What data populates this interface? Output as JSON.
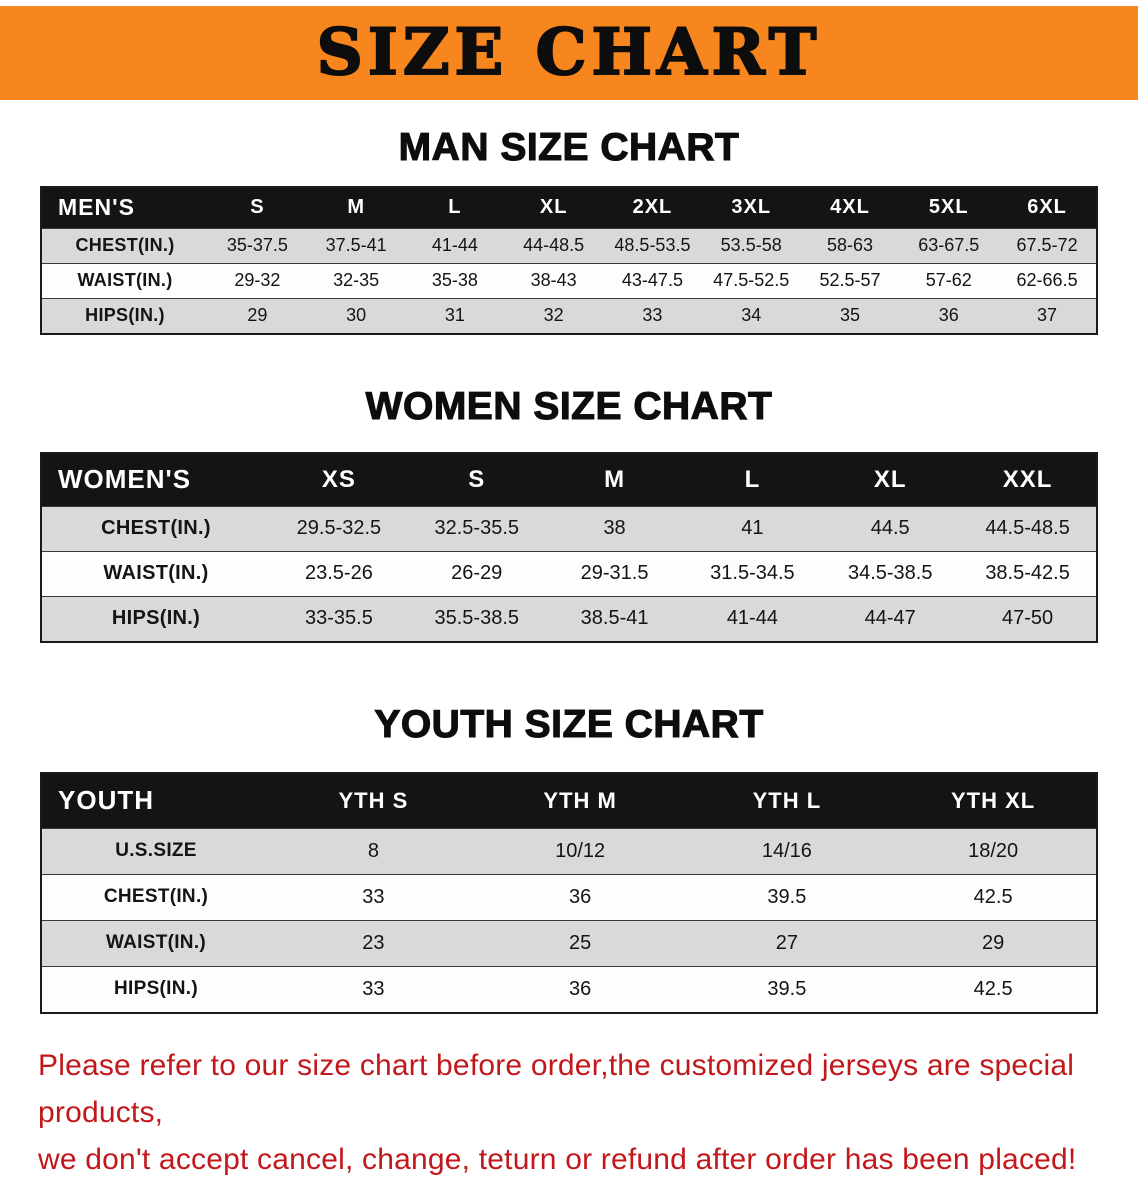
{
  "banner": {
    "title": "SIZE CHART",
    "bg_color": "#f6861d"
  },
  "sections": [
    {
      "heading": "MAN SIZE CHART",
      "table": {
        "header": [
          "MEN'S",
          "S",
          "M",
          "L",
          "XL",
          "2XL",
          "3XL",
          "4XL",
          "5XL",
          "6XL"
        ],
        "rows": [
          {
            "label": "CHEST(IN.)",
            "values": [
              "35-37.5",
              "37.5-41",
              "41-44",
              "44-48.5",
              "48.5-53.5",
              "53.5-58",
              "58-63",
              "63-67.5",
              "67.5-72"
            ]
          },
          {
            "label": "WAIST(IN.)",
            "values": [
              "29-32",
              "32-35",
              "35-38",
              "38-43",
              "43-47.5",
              "47.5-52.5",
              "52.5-57",
              "57-62",
              "62-66.5"
            ]
          },
          {
            "label": "HIPS(IN.)",
            "values": [
              "29",
              "30",
              "31",
              "32",
              "33",
              "34",
              "35",
              "36",
              "37"
            ]
          }
        ]
      }
    },
    {
      "heading": "WOMEN SIZE CHART",
      "table": {
        "header": [
          "WOMEN'S",
          "XS",
          "S",
          "M",
          "L",
          "XL",
          "XXL"
        ],
        "rows": [
          {
            "label": "CHEST(IN.)",
            "values": [
              "29.5-32.5",
              "32.5-35.5",
              "38",
              "41",
              "44.5",
              "44.5-48.5"
            ]
          },
          {
            "label": "WAIST(IN.)",
            "values": [
              "23.5-26",
              "26-29",
              "29-31.5",
              "31.5-34.5",
              "34.5-38.5",
              "38.5-42.5"
            ]
          },
          {
            "label": "HIPS(IN.)",
            "values": [
              "33-35.5",
              "35.5-38.5",
              "38.5-41",
              "41-44",
              "44-47",
              "47-50"
            ]
          }
        ]
      }
    },
    {
      "heading": "YOUTH SIZE CHART",
      "table": {
        "header": [
          "YOUTH",
          "YTH S",
          "YTH M",
          "YTH L",
          "YTH XL"
        ],
        "rows": [
          {
            "label": "U.S.SIZE",
            "values": [
              "8",
              "10/12",
              "14/16",
              "18/20"
            ]
          },
          {
            "label": "CHEST(IN.)",
            "values": [
              "33",
              "36",
              "39.5",
              "42.5"
            ]
          },
          {
            "label": "WAIST(IN.)",
            "values": [
              "23",
              "25",
              "27",
              "29"
            ]
          },
          {
            "label": "HIPS(IN.)",
            "values": [
              "33",
              "36",
              "39.5",
              "42.5"
            ]
          }
        ]
      }
    }
  ],
  "footer": {
    "text_color": "#c2181c",
    "lines": [
      "Please refer to our size chart before order,the customized jerseys are special products,",
      "we don't accept cancel, change, teturn or refund after order has been placed!"
    ]
  }
}
